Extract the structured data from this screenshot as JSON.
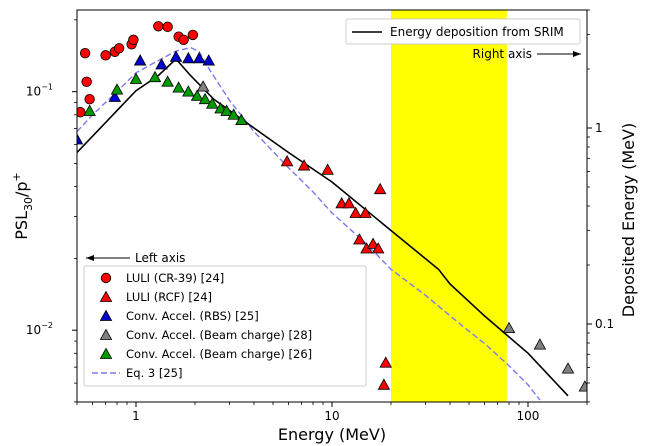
{
  "chart_data": {
    "type": "scatter",
    "title": "",
    "xlabel": "Energy (MeV)",
    "ylabel_left_main": "PSL",
    "ylabel_left_sub": "30",
    "ylabel_left_mid": "/p",
    "ylabel_left_sup": "+",
    "ylabel_right": "Deposited Energy (MeV)",
    "xscale": "log",
    "yscale_left": "log",
    "yscale_right": "log",
    "xlim": [
      0.5,
      200
    ],
    "ylim_left": [
      0.005,
      0.22
    ],
    "ylim_right": [
      0.04,
      4.0
    ],
    "xticks": [
      {
        "v": 1,
        "label": "1"
      },
      {
        "v": 10,
        "label": "10"
      },
      {
        "v": 100,
        "label": "100"
      }
    ],
    "yticks_left": [
      {
        "v": 0.1,
        "label": "10",
        "sup": "−1"
      },
      {
        "v": 0.01,
        "label": "10",
        "sup": "−2"
      }
    ],
    "yticks_right": [
      {
        "v": 1,
        "label": "1"
      },
      {
        "v": 0.1,
        "label": "0.1"
      }
    ],
    "shaded_band": {
      "x": [
        20,
        78
      ],
      "color": "#ffff00"
    },
    "annotations": {
      "left_axis": "Left axis",
      "right_axis": "Right axis"
    },
    "series": [
      {
        "name": "LULI (CR-39) [24]",
        "marker": "circle",
        "color": "#ff0000",
        "axis": "left",
        "points": [
          [
            0.52,
            0.082
          ],
          [
            0.55,
            0.145
          ],
          [
            0.56,
            0.11
          ],
          [
            0.58,
            0.093
          ],
          [
            0.7,
            0.142
          ],
          [
            0.78,
            0.147
          ],
          [
            0.82,
            0.152
          ],
          [
            0.95,
            0.158
          ],
          [
            0.97,
            0.165
          ],
          [
            1.3,
            0.188
          ],
          [
            1.45,
            0.187
          ],
          [
            1.65,
            0.17
          ],
          [
            1.75,
            0.165
          ],
          [
            1.95,
            0.173
          ]
        ]
      },
      {
        "name": "LULI (RCF) [24]",
        "marker": "triangle",
        "color": "#ff0000",
        "axis": "left",
        "points": [
          [
            5.9,
            0.051
          ],
          [
            7.2,
            0.049
          ],
          [
            9.5,
            0.047
          ],
          [
            11.2,
            0.034
          ],
          [
            12.2,
            0.034
          ],
          [
            13.2,
            0.031
          ],
          [
            14.8,
            0.031
          ],
          [
            13.8,
            0.024
          ],
          [
            15.0,
            0.022
          ],
          [
            16.2,
            0.023
          ],
          [
            17.2,
            0.022
          ],
          [
            17.6,
            0.039
          ],
          [
            18.8,
            0.0073
          ],
          [
            18.4,
            0.0059
          ]
        ]
      },
      {
        "name": "Conv. Accel. (RBS) [25]",
        "marker": "triangle",
        "color": "#0000cc",
        "axis": "left",
        "points": [
          [
            0.5,
            0.063
          ],
          [
            0.78,
            0.095
          ],
          [
            1.05,
            0.135
          ],
          [
            1.35,
            0.13
          ],
          [
            1.6,
            0.14
          ],
          [
            1.85,
            0.138
          ],
          [
            2.1,
            0.138
          ],
          [
            2.35,
            0.135
          ]
        ]
      },
      {
        "name": "Conv. Accel. (Beam charge) [28]",
        "marker": "triangle",
        "color": "#808080",
        "axis": "left",
        "points": [
          [
            2.2,
            0.105
          ],
          [
            80,
            0.0102
          ],
          [
            115,
            0.0087
          ],
          [
            160,
            0.0069
          ],
          [
            195,
            0.0058
          ]
        ]
      },
      {
        "name": "Conv. Accel. (Beam charge) [26]",
        "marker": "triangle",
        "color": "#009900",
        "axis": "left",
        "points": [
          [
            0.58,
            0.083
          ],
          [
            0.8,
            0.102
          ],
          [
            1.0,
            0.113
          ],
          [
            1.25,
            0.115
          ],
          [
            1.45,
            0.11
          ],
          [
            1.65,
            0.104
          ],
          [
            1.85,
            0.1
          ],
          [
            2.05,
            0.096
          ],
          [
            2.25,
            0.093
          ],
          [
            2.45,
            0.089
          ],
          [
            2.7,
            0.085
          ],
          [
            2.9,
            0.083
          ],
          [
            3.15,
            0.08
          ],
          [
            3.45,
            0.076
          ]
        ]
      }
    ],
    "lines": [
      {
        "name": "Eq. 3 [25]",
        "style": "dashed",
        "color": "#7b7bf0",
        "axis": "left",
        "x": [
          0.5,
          0.6,
          0.8,
          1.0,
          1.3,
          1.6,
          1.9,
          2.1,
          2.4,
          3,
          4,
          6,
          8,
          10,
          15,
          20,
          30,
          40,
          50,
          60,
          80,
          100,
          115
        ],
        "y": [
          0.068,
          0.08,
          0.1,
          0.12,
          0.135,
          0.148,
          0.153,
          0.147,
          0.122,
          0.092,
          0.068,
          0.048,
          0.038,
          0.031,
          0.023,
          0.018,
          0.014,
          0.0115,
          0.0099,
          0.0088,
          0.0071,
          0.0059,
          0.0051
        ]
      },
      {
        "name": "Energy deposition from SRIM",
        "style": "solid",
        "color": "#000000",
        "axis": "right",
        "x": [
          0.5,
          1.0,
          1.3,
          1.6,
          1.9,
          2.5,
          4,
          6,
          10,
          20,
          35,
          40,
          60,
          100,
          160
        ],
        "y": [
          0.75,
          1.55,
          1.85,
          2.25,
          1.85,
          1.4,
          1.0,
          0.75,
          0.53,
          0.3,
          0.19,
          0.16,
          0.11,
          0.071,
          0.043
        ]
      }
    ],
    "legend_upper": {
      "position": "top-right",
      "items": [
        "Energy deposition from SRIM"
      ]
    },
    "legend_lower": {
      "position": "bottom-left",
      "items": [
        "LULI (CR-39) [24]",
        "LULI (RCF) [24]",
        "Conv. Accel. (RBS) [25]",
        "Conv. Accel. (Beam charge) [28]",
        "Conv. Accel. (Beam charge) [26]",
        "Eq. 3 [25]"
      ]
    }
  }
}
